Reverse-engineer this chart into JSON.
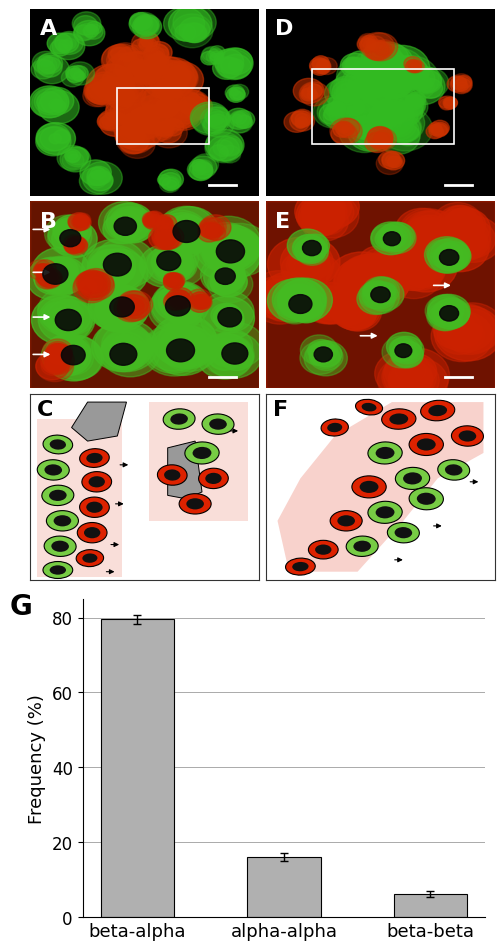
{
  "bar_categories": [
    "beta-alpha",
    "alpha-alpha",
    "beta-beta"
  ],
  "bar_values": [
    79.5,
    16.0,
    6.2
  ],
  "bar_errors": [
    1.2,
    1.0,
    0.8
  ],
  "bar_color": "#b0b0b0",
  "bar_edge_color": "#000000",
  "ylabel": "Frequency (%)",
  "yticks": [
    0,
    20,
    40,
    60,
    80
  ],
  "ylim": [
    0,
    85
  ],
  "grid_color": "#aaaaaa",
  "background_color": "#ffffff",
  "fig_bg": "#ffffff",
  "label_fontsize": 16,
  "tick_fontsize": 12,
  "ylabel_fontsize": 13,
  "xticklabel_fontsize": 13,
  "panel_g_label_fontsize": 20,
  "green_cell": "#77cc44",
  "red_cell": "#dd2200",
  "gray_cell": "#999999",
  "black_nucleus": "#111111",
  "cell_edge": "#000000"
}
